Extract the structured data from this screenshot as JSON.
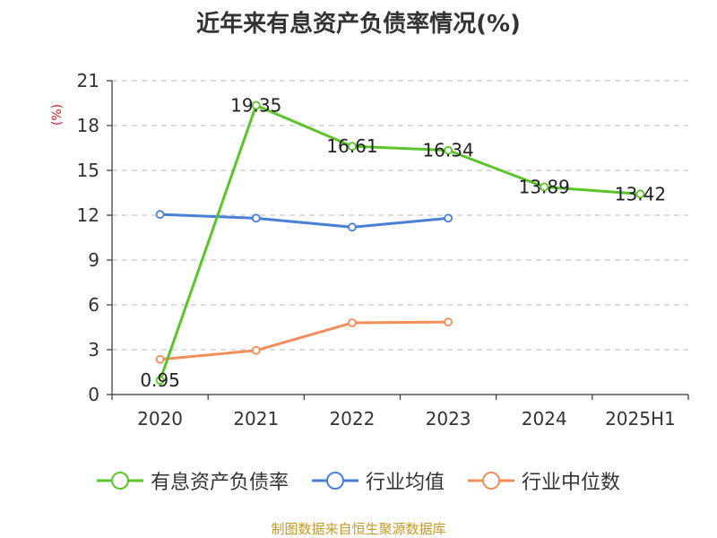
{
  "chart_data": {
    "type": "line",
    "title": "近年来有息资产负债率情况(%)",
    "ylabel": "(%)",
    "categories": [
      "2020",
      "2021",
      "2022",
      "2023",
      "2024",
      "2025H1"
    ],
    "ylim": [
      0,
      21
    ],
    "yticks": [
      0,
      3,
      6,
      9,
      12,
      15,
      18,
      21
    ],
    "grid": true,
    "legend_position": "bottom",
    "series": [
      {
        "name": "有息资产负债率",
        "color": "#5bc42a",
        "values": [
          0.95,
          19.35,
          16.61,
          16.34,
          13.89,
          13.42
        ],
        "labels": [
          "0.95",
          "19.35",
          "16.61",
          "16.34",
          "13.89",
          "13.42"
        ]
      },
      {
        "name": "行业均值",
        "color": "#4a7fd6",
        "values": [
          12.05,
          11.8,
          11.2,
          11.8,
          null,
          null
        ]
      },
      {
        "name": "行业中位数",
        "color": "#f28e5c",
        "values": [
          2.35,
          2.95,
          4.8,
          4.85,
          null,
          null
        ]
      }
    ]
  },
  "source": "制图数据来自恒生聚源数据库"
}
